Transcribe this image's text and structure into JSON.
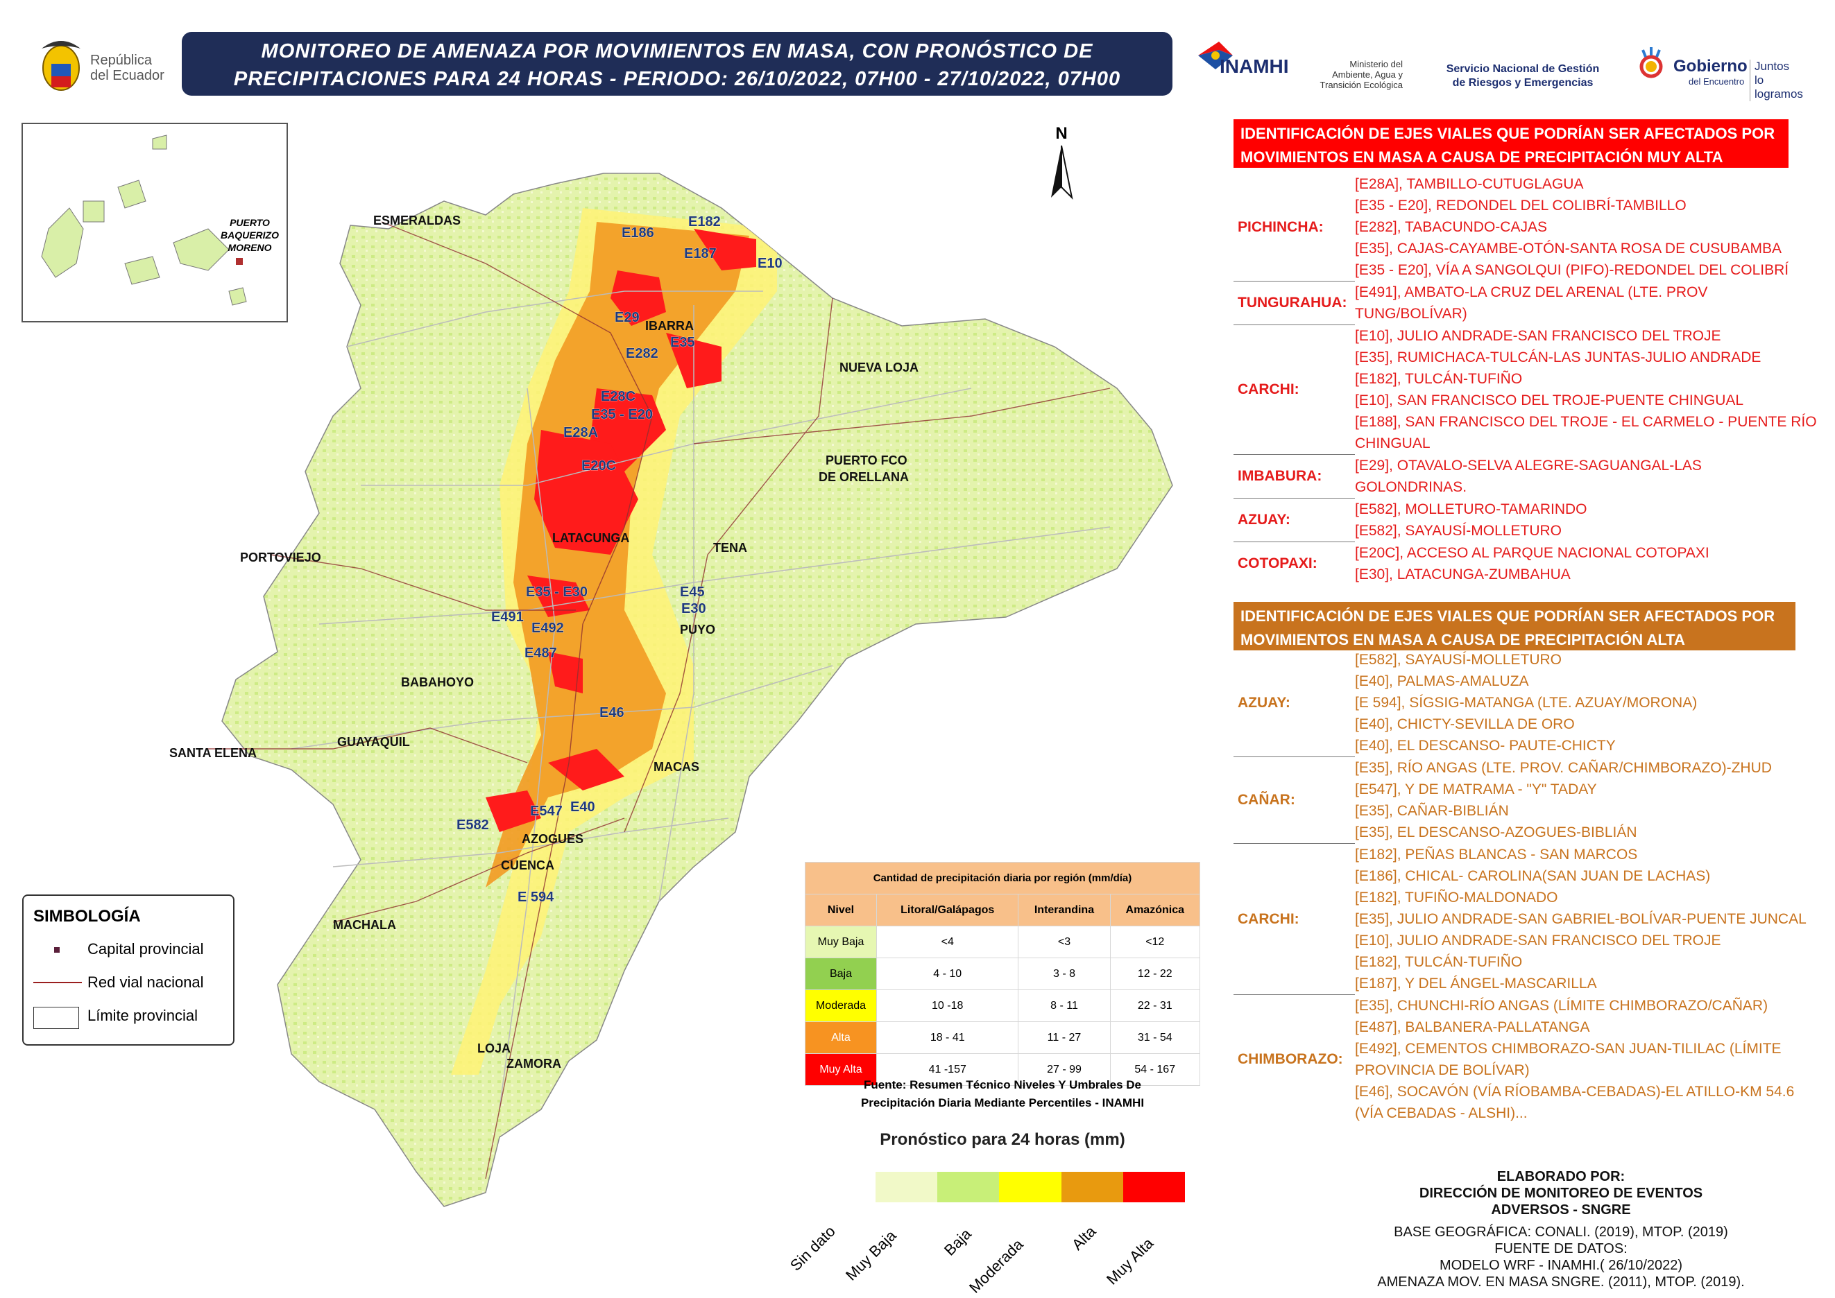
{
  "header": {
    "title_line1": "MONITOREO DE AMENAZA POR MOVIMIENTOS EN MASA, CON PRONÓSTICO DE",
    "title_line2": "PRECIPITACIONES PARA 24 HORAS - PERIODO: 26/10/2022, 07H00 - 27/10/2022, 07H00",
    "logo_republica_1": "República",
    "logo_republica_2": "del Ecuador",
    "logo_inamhi": "INAMHI",
    "logo_ministerio": [
      "Ministerio del",
      "Ambiente, Agua y",
      "Transición Ecológica"
    ],
    "logo_sngre": [
      "Servicio Nacional de Gestión",
      "de Riesgos y Emergencias"
    ],
    "logo_gobierno": "Gobierno",
    "logo_gobierno_sub": "del Encuentro",
    "logo_juntos": [
      "Juntos",
      "lo logramos"
    ]
  },
  "map": {
    "north_label": "N",
    "inset_label": [
      "PUERTO",
      "BAQUERIZO",
      "MORENO"
    ],
    "cities": [
      "ESMERALDAS",
      "IBARRA",
      "NUEVA LOJA",
      "PUERTO FCO",
      "DE ORELLANA",
      "LATACUNGA",
      "TENA",
      "PORTOVIEJO",
      "PUYO",
      "BABAHOYO",
      "SANTA ELENA",
      "GUAYAQUIL",
      "MACAS",
      "AZOGUES",
      "CUENCA",
      "MACHALA",
      "LOJA",
      "ZAMORA"
    ],
    "road_labels": [
      "E182",
      "E186",
      "E187",
      "E10",
      "E29",
      "E282",
      "E35",
      "E28C",
      "E35 - E20",
      "E28A",
      "E20C",
      "E35 - E30",
      "E45",
      "E30",
      "E491",
      "E492",
      "E487",
      "E46",
      "E547",
      "E40",
      "E582",
      "E 594"
    ]
  },
  "legend": {
    "title": "SIMBOLOGÍA",
    "items": [
      "Capital provincial",
      "Red vial nacional",
      "Límite provincial"
    ]
  },
  "table": {
    "title": "Cantidad de precipitación diaria por región (mm/día)",
    "headers": [
      "Nivel",
      "Litoral/Galápagos",
      "Interandina",
      "Amazónica"
    ],
    "rows": [
      {
        "level": "Muy Baja",
        "lit": "<4",
        "int": "<3",
        "ama": "<12",
        "color": "#e6f7b2"
      },
      {
        "level": "Baja",
        "lit": "4 - 10",
        "int": "3 - 8",
        "ama": "12 - 22",
        "color": "#92d050"
      },
      {
        "level": "Moderada",
        "lit": "10 -18",
        "int": "8 - 11",
        "ama": "22 - 31",
        "color": "#ffff00"
      },
      {
        "level": "Alta",
        "lit": "18 - 41",
        "int": "11 - 27",
        "ama": "31 - 54",
        "color": "#f79321"
      },
      {
        "level": "Muy Alta",
        "lit": "41 -157",
        "int": "27 - 99",
        "ama": "54 - 167",
        "color": "#ff0000"
      }
    ],
    "source_1": "Fuente: Resumen Técnico Niveles Y Umbrales De",
    "source_2": "Precipitación Diaria Mediante Percentiles - INAMHI"
  },
  "scale": {
    "title": "Pronóstico para 24 horas (mm)",
    "labels": [
      "Sin dato",
      "Muy Baja",
      "Baja",
      "Moderada",
      "Alta",
      "Muy Alta"
    ],
    "colors": [
      "#f1f9c8",
      "#c8ef78",
      "#ffff00",
      "#e89a0f",
      "#ff0000"
    ]
  },
  "panel_red": {
    "header_1": "IDENTIFICACIÓN DE EJES VIALES QUE PODRÍAN SER AFECTADOS POR",
    "header_2": "MOVIMIENTOS EN MASA A CAUSA DE  PRECIPITACIÓN MUY ALTA",
    "groups": [
      {
        "province": "PICHINCHA:",
        "roads": [
          "[E28A], TAMBILLO-CUTUGLAGUA",
          "[E35 - E20], REDONDEL DEL COLIBRÍ-TAMBILLO",
          "[E282], TABACUNDO-CAJAS",
          "[E35], CAJAS-CAYAMBE-OTÓN-SANTA ROSA DE CUSUBAMBA",
          "[E35 - E20], VÍA A SANGOLQUI (PIFO)-REDONDEL DEL COLIBRÍ"
        ]
      },
      {
        "province": "TUNGURAHUA:",
        "roads": [
          "[E491], AMBATO-LA CRUZ DEL ARENAL (LTE. PROV",
          "TUNG/BOLÍVAR)"
        ]
      },
      {
        "province": "CARCHI:",
        "roads": [
          "[E10], JULIO ANDRADE-SAN FRANCISCO DEL TROJE",
          "[E35], RUMICHACA-TULCÁN-LAS JUNTAS-JULIO ANDRADE",
          "[E182], TULCÁN-TUFIÑO",
          "[E10], SAN FRANCISCO DEL TROJE-PUENTE CHINGUAL",
          "[E188], SAN FRANCISCO DEL TROJE - EL CARMELO - PUENTE RÍO",
          "CHINGUAL"
        ]
      },
      {
        "province": "IMBABURA:",
        "roads": [
          "[E29], OTAVALO-SELVA ALEGRE-SAGUANGAL-LAS",
          "GOLONDRINAS."
        ]
      },
      {
        "province": "AZUAY:",
        "roads": [
          "[E582], MOLLETURO-TAMARINDO",
          "[E582], SAYAUSÍ-MOLLETURO"
        ]
      },
      {
        "province": "COTOPAXI:",
        "roads": [
          "[E20C], ACCESO AL PARQUE NACIONAL COTOPAXI",
          "[E30], LATACUNGA-ZUMBAHUA"
        ]
      }
    ]
  },
  "panel_orange": {
    "header_1": "IDENTIFICACIÓN DE EJES VIALES QUE PODRÍAN SER AFECTADOS POR",
    "header_2": "MOVIMIENTOS EN MASA A CAUSA DE  PRECIPITACIÓN ALTA",
    "groups": [
      {
        "province": "AZUAY:",
        "roads": [
          "[E582], SAYAUSÍ-MOLLETURO",
          "[E40], PALMAS-AMALUZA",
          "[E 594], SÍGSIG-MATANGA (LTE. AZUAY/MORONA)",
          "[E40], CHICTY-SEVILLA DE ORO",
          "[E40], EL DESCANSO- PAUTE-CHICTY"
        ]
      },
      {
        "province": "CAÑAR:",
        "roads": [
          "[E35], RÍO ANGAS (LTE. PROV. CAÑAR/CHIMBORAZO)-ZHUD",
          "[E547], Y DE MATRAMA - \"Y\" TADAY",
          "[E35], CAÑAR-BIBLIÁN",
          "[E35], EL DESCANSO-AZOGUES-BIBLIÁN"
        ]
      },
      {
        "province": "CARCHI:",
        "roads": [
          "[E182], PEÑAS BLANCAS - SAN MARCOS",
          "[E186], CHICAL- CAROLINA(SAN JUAN DE LACHAS)",
          "[E182], TUFIÑO-MALDONADO",
          "[E35], JULIO ANDRADE-SAN GABRIEL-BOLÍVAR-PUENTE JUNCAL",
          "[E10], JULIO ANDRADE-SAN FRANCISCO DEL TROJE",
          "[E182], TULCÁN-TUFIÑO",
          "[E187], Y DEL ÁNGEL-MASCARILLA"
        ]
      },
      {
        "province": "CHIMBORAZO:",
        "roads": [
          "[E35], CHUNCHI-RÍO ANGAS (LÍMITE CHIMBORAZO/CAÑAR)",
          "[E487], BALBANERA-PALLATANGA",
          "[E492], CEMENTOS CHIMBORAZO-SAN JUAN-TILILAC (LÍMITE",
          "PROVINCIA DE BOLÍVAR)",
          "[E46], SOCAVÓN (VÍA RÍOBAMBA-CEBADAS)-EL ATILLO-KM 54.6",
          "(VÍA CEBADAS - ALSHI)..."
        ]
      }
    ]
  },
  "credits": {
    "lines_bold": [
      "ELABORADO POR:",
      "DIRECCIÓN DE MONITOREO DE EVENTOS",
      "ADVERSOS - SNGRE"
    ],
    "lines": [
      "BASE GEOGRÁFICA: CONALI. (2019), MTOP. (2019)",
      "FUENTE DE DATOS:",
      "MODELO WRF - INAMHI.( 26/10/2022)",
      "AMENAZA MOV. EN MASA SNGRE. (2011), MTOP. (2019)."
    ]
  },
  "colors": {
    "title_bg": "#1f2d57",
    "very_high": "#ff0000",
    "high": "#c8731e",
    "base_land": "#e6f2b4"
  }
}
